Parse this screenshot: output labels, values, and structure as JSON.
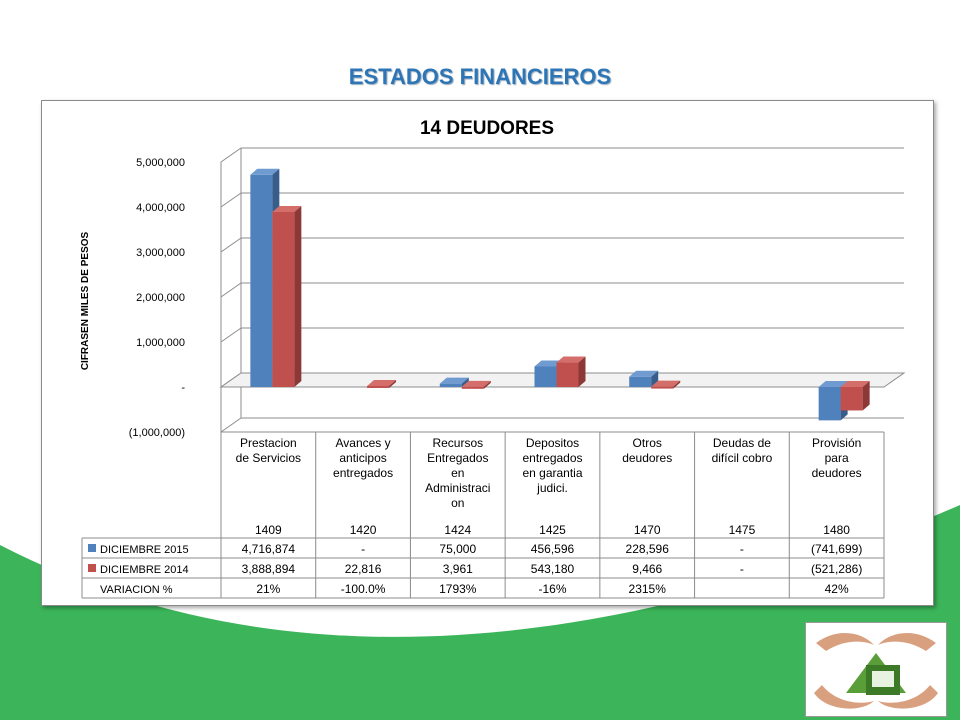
{
  "slide": {
    "title": "ESTADOS FINANCIEROS"
  },
  "colors": {
    "green": "#3cb55a",
    "title_blue": "#2e75b6",
    "series_2015": "#4f81bd",
    "series_2014": "#c0504d"
  },
  "chart_data": {
    "type": "bar",
    "title": "14 DEUDORES",
    "ylabel": "CIFRASEN MILES DE PESOS",
    "ylim": [
      -1000000,
      5000000
    ],
    "yticks": [
      {
        "value": 5000000,
        "label": "5,000,000"
      },
      {
        "value": 4000000,
        "label": "4,000,000"
      },
      {
        "value": 3000000,
        "label": "3,000,000"
      },
      {
        "value": 2000000,
        "label": "2,000,000"
      },
      {
        "value": 1000000,
        "label": "1,000,000"
      },
      {
        "value": 0,
        "label": "-"
      },
      {
        "value": -1000000,
        "label": "(1,000,000)"
      }
    ],
    "categories": [
      {
        "lines": [
          "Prestacion",
          "de Servicios"
        ],
        "code": "1409"
      },
      {
        "lines": [
          "Avances y",
          "anticipos",
          "entregados"
        ],
        "code": "1420"
      },
      {
        "lines": [
          "Recursos",
          "Entregados",
          "en",
          "Administraci",
          "on"
        ],
        "code": "1424"
      },
      {
        "lines": [
          "Depositos",
          "entregados",
          "en garantia",
          "judici."
        ],
        "code": "1425"
      },
      {
        "lines": [
          "Otros",
          "deudores"
        ],
        "code": "1470"
      },
      {
        "lines": [
          "Deudas de",
          "difícil cobro"
        ],
        "code": "1475"
      },
      {
        "lines": [
          "Provisión",
          "para",
          "deudores"
        ],
        "code": "1480"
      }
    ],
    "series": [
      {
        "name": "DICIEMBRE 2015",
        "color": "#4f81bd",
        "values": [
          4716874,
          0,
          75000,
          456596,
          228596,
          0,
          -741699
        ],
        "labels": [
          "4,716,874",
          "-",
          "75,000",
          "456,596",
          "228,596",
          "-",
          "(741,699)"
        ]
      },
      {
        "name": "DICIEMBRE 2014",
        "color": "#c0504d",
        "values": [
          3888894,
          22816,
          3961,
          543180,
          9466,
          0,
          -521286
        ],
        "labels": [
          "3,888,894",
          "22,816",
          "3,961",
          "543,180",
          "9,466",
          "-",
          "(521,286)"
        ]
      }
    ],
    "variation": {
      "label": "VARIACION %",
      "values": [
        "21%",
        "-100.0%",
        "1793%",
        "-16%",
        "2315%",
        "",
        "42%"
      ]
    },
    "grid": true
  }
}
